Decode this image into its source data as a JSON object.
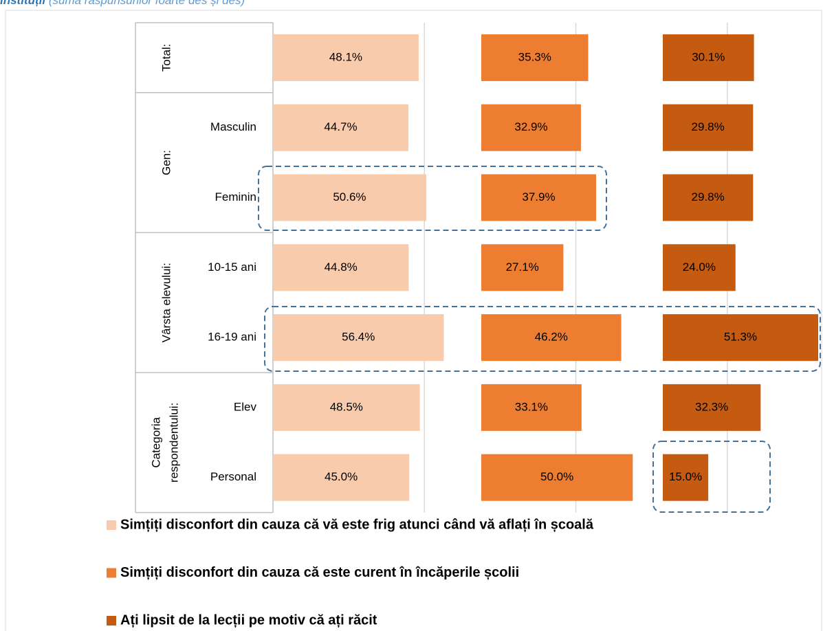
{
  "chart_data": {
    "type": "bar",
    "orientation": "horizontal",
    "title": "instituții",
    "subtitle": "(suma răspunsurilor foarte des și des)",
    "groups": [
      {
        "name": "Total:",
        "categories": [
          null
        ]
      },
      {
        "name": "Gen:",
        "categories": [
          "Masculin",
          "Feminin"
        ]
      },
      {
        "name": "Vârsta elevului:",
        "categories": [
          "10-15 ani",
          "16-19 ani"
        ]
      },
      {
        "name": [
          "Categoria",
          "respondentului:"
        ],
        "categories": [
          "Elev",
          "Personal"
        ]
      }
    ],
    "series": [
      {
        "name": "Simțiți disconfort din cauza că vă este frig atunci când vă aflați în școală",
        "color": "#F8CBAD",
        "values": [
          48.1,
          44.7,
          50.6,
          44.8,
          56.4,
          48.5,
          45.0
        ],
        "value_labels": [
          "48.1%",
          "44.7%",
          "50.6%",
          "44.8%",
          "56.4%",
          "48.5%",
          "45.0%"
        ]
      },
      {
        "name": "Simțiți disconfort din cauza că este curent în încăperile școlii",
        "color": "#ED7D31",
        "values": [
          35.3,
          32.9,
          37.9,
          27.1,
          46.2,
          33.1,
          50.0
        ],
        "value_labels": [
          "35.3%",
          "32.9%",
          "37.9%",
          "27.1%",
          "46.2%",
          "33.1%",
          "50.0%"
        ]
      },
      {
        "name": "Ați lipsit de la lecții pe motiv că ați răcit",
        "color": "#C55A11",
        "values": [
          30.1,
          29.8,
          29.8,
          24.0,
          51.3,
          32.3,
          15.0
        ],
        "value_labels": [
          "30.1%",
          "29.8%",
          "29.8%",
          "24.0%",
          "51.3%",
          "32.3%",
          "15.0%"
        ]
      }
    ],
    "xlim": [
      0,
      180
    ],
    "xticks": [
      50,
      100,
      150
    ],
    "grid": true
  }
}
